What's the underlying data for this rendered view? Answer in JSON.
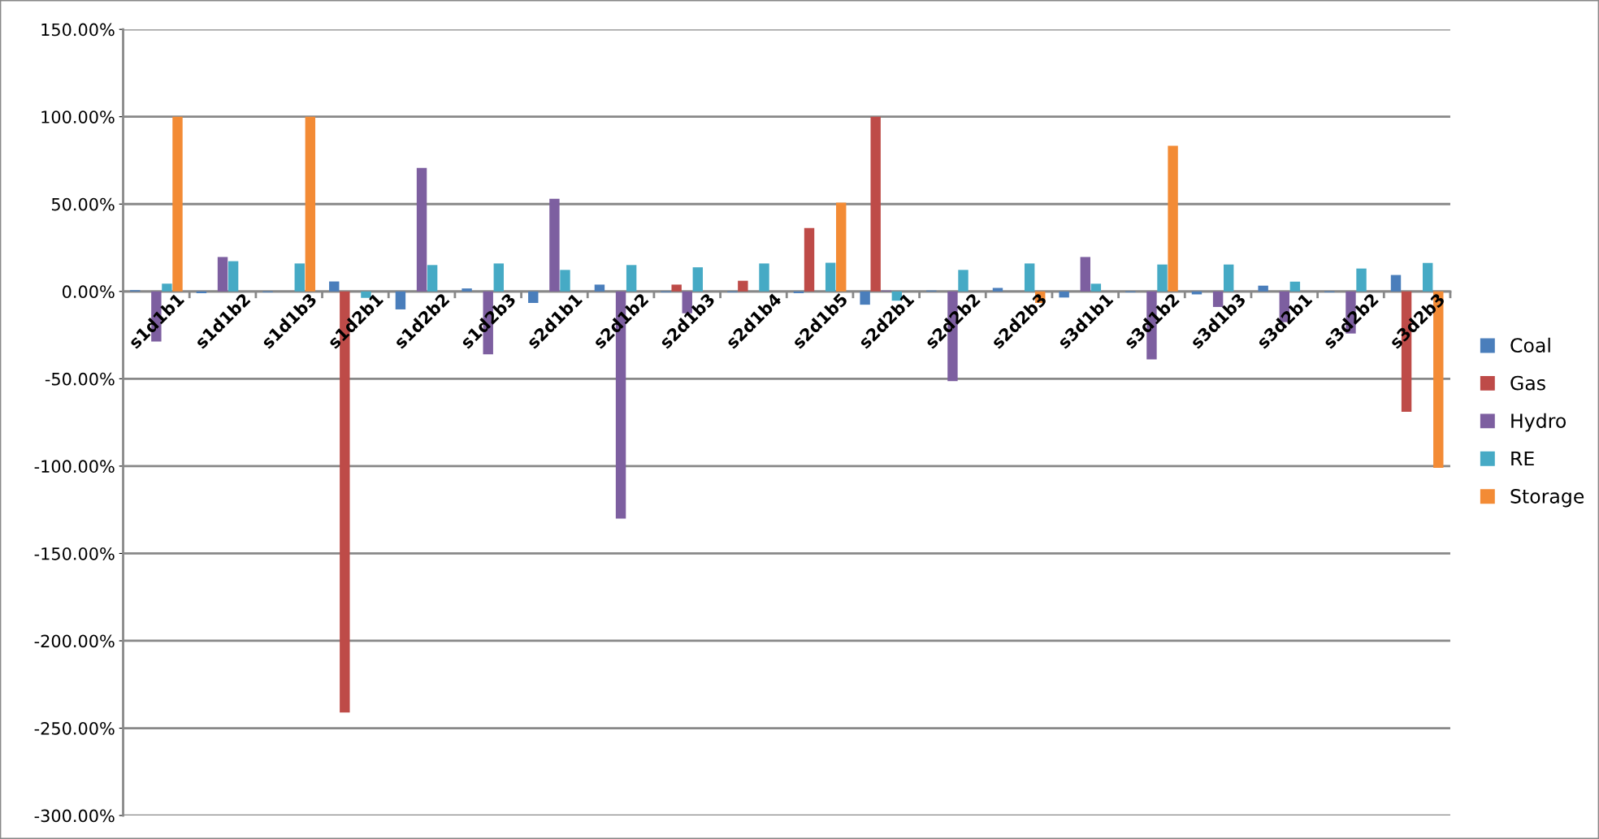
{
  "chart_data": {
    "type": "bar",
    "categories": [
      "s1d1b1",
      "s1d1b2",
      "s1d1b3",
      "s1d2b1",
      "s1d2b2",
      "s1d2b3",
      "s2d1b1",
      "s2d1b2",
      "s2d1b3",
      "s2d1b4",
      "s2d1b5",
      "s2d2b1",
      "s2d2b2",
      "s2d2b3",
      "s3d1b1",
      "s3d1b2",
      "s3d1b3",
      "s3d2b1",
      "s3d2b2",
      "s3d2b3"
    ],
    "series": [
      {
        "name": "Coal",
        "color": "#4a7ebb",
        "values": [
          0.7,
          -1,
          -0.5,
          5.7,
          -10.3,
          1.7,
          -6.6,
          3.9,
          -0.5,
          -0.5,
          -1,
          -7.6,
          0.5,
          2,
          -3.5,
          -0.5,
          -1.7,
          3.3,
          -0.5,
          9.4
        ]
      },
      {
        "name": "Gas",
        "color": "#be4b48",
        "values": [
          0,
          0,
          0,
          -241,
          0,
          0,
          0,
          0,
          3.9,
          6.1,
          36.3,
          100,
          0,
          0,
          0,
          0,
          0,
          0,
          0,
          -68.9
        ]
      },
      {
        "name": "Hydro",
        "color": "#7d5fa0",
        "values": [
          -28.7,
          19.7,
          0,
          0,
          70.7,
          -36,
          53,
          -130,
          -12.5,
          0,
          0,
          0.5,
          -51.4,
          0,
          19.7,
          -38.9,
          -8.9,
          -17.6,
          -24.1,
          0
        ]
      },
      {
        "name": "RE",
        "color": "#46aac5",
        "values": [
          4.4,
          17.3,
          16,
          -3.7,
          15.1,
          16,
          12.3,
          15.1,
          13.8,
          16,
          16.4,
          -5.3,
          12.3,
          16,
          4.4,
          15.4,
          15.4,
          5.6,
          13.1,
          16.3
        ]
      },
      {
        "name": "Storage",
        "color": "#f38b35",
        "values": [
          100,
          0,
          100,
          0,
          0,
          0,
          0,
          0,
          0,
          0,
          50.8,
          0,
          0,
          -6.6,
          0,
          83.3,
          0,
          0,
          0,
          -101
        ]
      }
    ],
    "ylim": [
      -300,
      150
    ],
    "yticks": [
      {
        "value": -300,
        "label": "-300.00%"
      },
      {
        "value": -250,
        "label": "-250.00%"
      },
      {
        "value": -200,
        "label": "-200.00%"
      },
      {
        "value": -150,
        "label": "-150.00%"
      },
      {
        "value": -100,
        "label": "-100.00%"
      },
      {
        "value": -50,
        "label": "-50.00%"
      },
      {
        "value": 0,
        "label": "0.00%"
      },
      {
        "value": 50,
        "label": "50.00%"
      },
      {
        "value": 100,
        "label": "100.00%"
      },
      {
        "value": 150,
        "label": "150.00%"
      }
    ],
    "grid": "y",
    "legend": "right"
  }
}
